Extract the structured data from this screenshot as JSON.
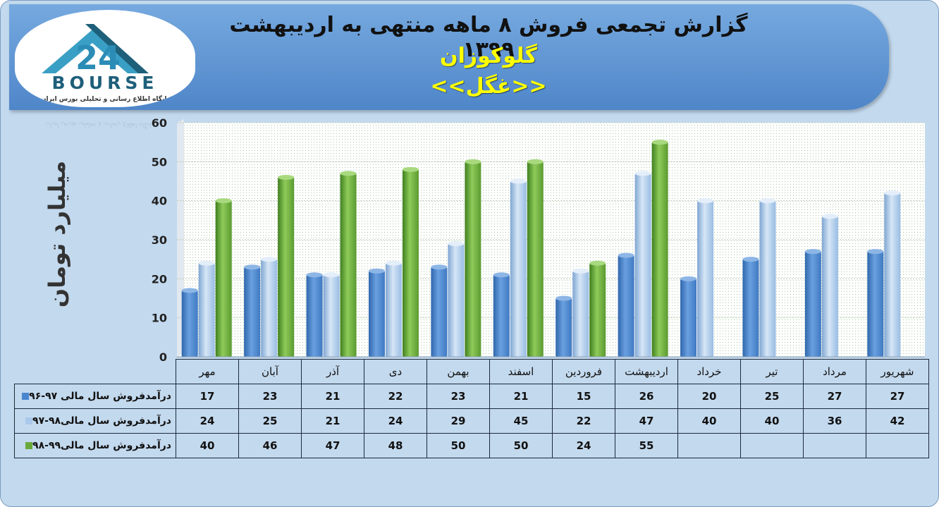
{
  "header": {
    "title": "گزارش تجمعی  فروش ۸ ماهه منتهی به اردیبهشت ۱۳۹۹",
    "company": "گلوکوزان",
    "symbol": "<<غگل>>"
  },
  "logo": {
    "brand": "BOURSE",
    "tagline": "پایگاه اطلاع رسانی و تحلیلی بورس ایران",
    "colors": {
      "teal": "#3a9fc4",
      "dark": "#1e5f7a"
    }
  },
  "colors": {
    "background": "#c3d9ee",
    "banner": "#5b93d3",
    "series1": "#4a86cf",
    "series2": "#a9c8ea",
    "series3": "#6aaa3a"
  },
  "chart_data": {
    "type": "bar",
    "ylabel": "میلیارد تومان",
    "ylim": [
      0,
      60
    ],
    "yticks": [
      0,
      10,
      20,
      30,
      40,
      50,
      60
    ],
    "grid": true,
    "categories": [
      "مهر",
      "آبان",
      "آذر",
      "دی",
      "بهمن",
      "اسفند",
      "فروردین",
      "اردیبهشت",
      "خرداد",
      "تیر",
      "مرداد",
      "شهریور"
    ],
    "series": [
      {
        "name": "درآمدفروش سال مالی ۹۷-۹۶",
        "color": "#4a86cf",
        "values": [
          17,
          23,
          21,
          22,
          23,
          21,
          15,
          26,
          20,
          25,
          27,
          27
        ]
      },
      {
        "name": "درآمدفروش سال مالی۹۸-۹۷",
        "color": "#a9c8ea",
        "values": [
          24,
          25,
          21,
          24,
          29,
          45,
          22,
          47,
          40,
          40,
          36,
          42
        ]
      },
      {
        "name": "درآمدفروش سال مالی۹۹-۹۸",
        "color": "#6aaa3a",
        "values": [
          40,
          46,
          47,
          48,
          50,
          50,
          24,
          55,
          null,
          null,
          null,
          null
        ]
      }
    ]
  }
}
